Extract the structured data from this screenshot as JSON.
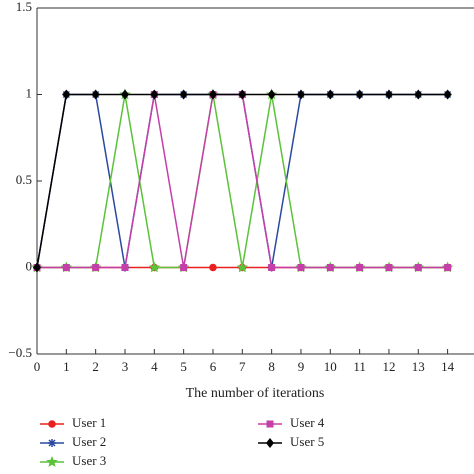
{
  "chart_data": {
    "type": "line",
    "xlabel": "The number of iterations",
    "x": [
      0,
      1,
      2,
      3,
      4,
      5,
      6,
      7,
      8,
      9,
      10,
      11,
      12,
      13,
      14
    ],
    "xlim": [
      0,
      14.9
    ],
    "xticks": [
      0,
      1,
      2,
      3,
      4,
      5,
      6,
      7,
      8,
      9,
      10,
      11,
      12,
      13,
      14
    ],
    "ylim": [
      -0.5,
      1.5
    ],
    "yticks": [
      {
        "value": -0.5,
        "label": "−0.5"
      },
      0,
      0.5,
      1,
      1.5
    ],
    "series": [
      {
        "name": "User 1",
        "color": "#e8201f",
        "values": [
          0,
          0,
          0,
          0,
          0,
          0,
          0,
          0,
          0,
          0,
          0,
          0,
          0,
          0,
          0
        ]
      },
      {
        "name": "User 2",
        "color": "#2a4aa0",
        "values": [
          0,
          1,
          1,
          0,
          1,
          1,
          1,
          1,
          0,
          1,
          1,
          1,
          1,
          1,
          1
        ]
      },
      {
        "name": "User 3",
        "color": "#5cc23a",
        "values": [
          0,
          0,
          0,
          1,
          0,
          0,
          1,
          0,
          1,
          0,
          0,
          0,
          0,
          0,
          0
        ]
      },
      {
        "name": "User 4",
        "color": "#c53fa8",
        "values": [
          0,
          0,
          0,
          0,
          1,
          0,
          1,
          1,
          0,
          0,
          0,
          0,
          0,
          0,
          0
        ]
      },
      {
        "name": "User 5",
        "color": "#000000",
        "values": [
          0,
          1,
          1,
          1,
          1,
          1,
          1,
          1,
          1,
          1,
          1,
          1,
          1,
          1,
          1
        ]
      }
    ]
  }
}
